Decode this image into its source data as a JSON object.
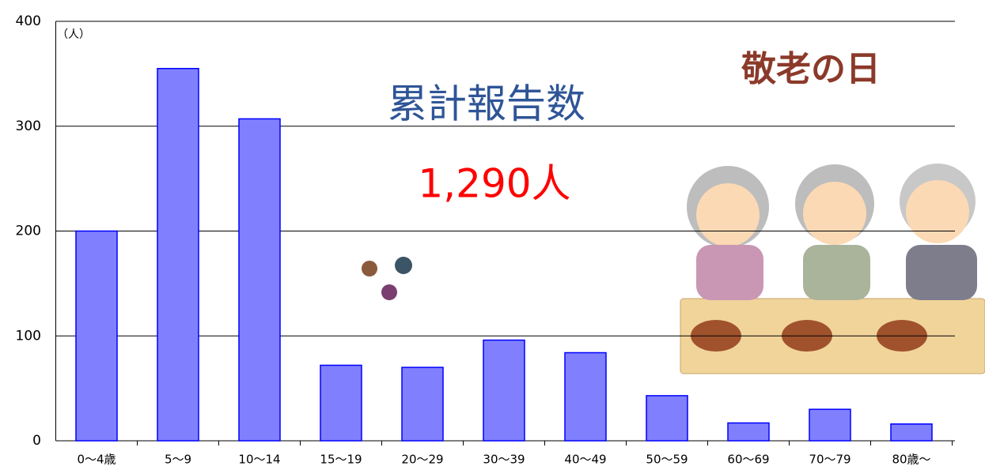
{
  "chart_data": {
    "type": "bar",
    "unit_label": "（人）",
    "annotations": [
      "累計報告数",
      "1,290人",
      "敬老の日"
    ],
    "categories": [
      "0〜4歳",
      "5〜9",
      "10〜14",
      "15〜19",
      "20〜29",
      "30〜39",
      "40〜49",
      "50〜59",
      "60〜69",
      "70〜79",
      "80歳〜"
    ],
    "values": [
      200,
      355,
      307,
      72,
      70,
      96,
      84,
      43,
      17,
      30,
      16
    ],
    "color": "#8080ff",
    "ylim": [
      0,
      400
    ],
    "yticks": [
      0,
      100,
      200,
      300,
      400
    ],
    "grid": true
  }
}
